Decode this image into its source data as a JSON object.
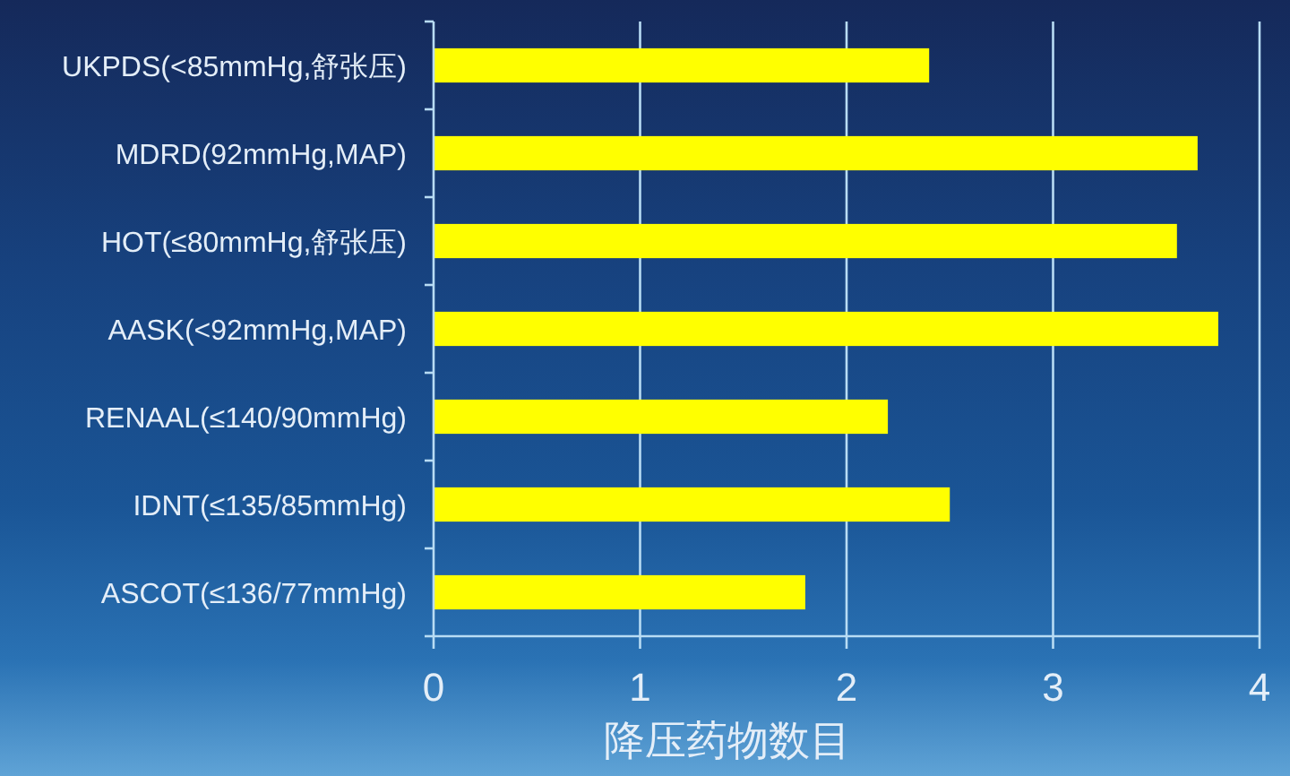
{
  "chart_data": {
    "type": "bar",
    "orientation": "horizontal",
    "categories": [
      "UKPDS(<85mmHg,舒张压)",
      "MDRD(92mmHg,MAP)",
      "HOT(≤80mmHg,舒张压)",
      "AASK(<92mmHg,MAP)",
      "RENAAL(≤140/90mmHg)",
      "IDNT(≤135/85mmHg)",
      "ASCOT(≤136/77mmHg)"
    ],
    "values": [
      2.4,
      3.7,
      3.6,
      3.8,
      2.2,
      2.5,
      1.8
    ],
    "color": "#ffff00",
    "xlabel": "降压药物数目",
    "xlim": [
      0,
      4
    ],
    "xticks": [
      0,
      1,
      2,
      3,
      4
    ],
    "grid": "x"
  }
}
